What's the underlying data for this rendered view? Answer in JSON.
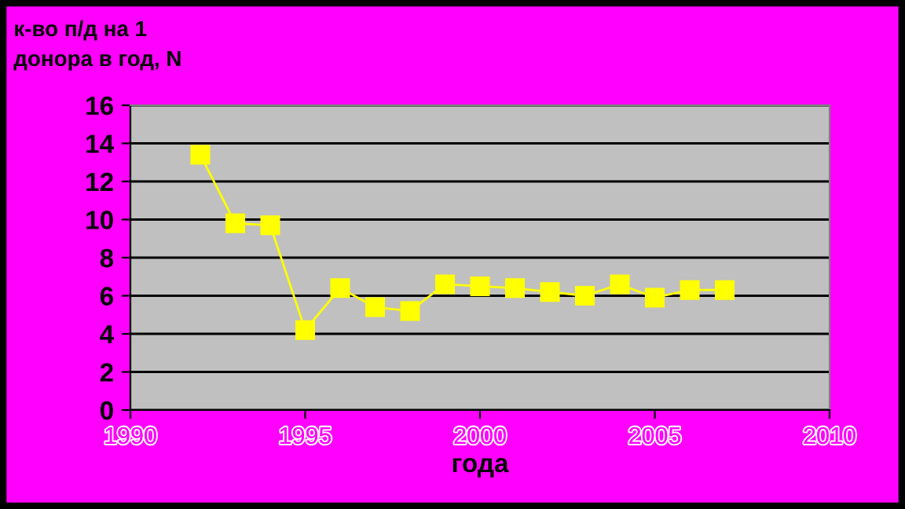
{
  "chart_data": {
    "type": "line",
    "ylabel": "к-во п/д на 1\nдонора в год, N",
    "xlabel": "года",
    "x": [
      1992,
      1993,
      1994,
      1995,
      1996,
      1997,
      1998,
      1999,
      2000,
      2001,
      2002,
      2003,
      2004,
      2005,
      2006,
      2007
    ],
    "series": [
      {
        "color": "#ffff00",
        "values": [
          13.4,
          9.8,
          9.7,
          4.2,
          6.4,
          5.4,
          5.2,
          6.6,
          6.5,
          6.4,
          6.2,
          6.0,
          6.6,
          5.9,
          6.3,
          6.3
        ]
      }
    ],
    "xlim": [
      1990,
      2010
    ],
    "xticks": [
      1990,
      1995,
      2000,
      2005,
      2010
    ],
    "ylim": [
      0,
      16
    ],
    "yticks": [
      0,
      2,
      4,
      6,
      8,
      10,
      12,
      14,
      16
    ],
    "grid": "y",
    "legend": false,
    "marker": "square",
    "line_style": "solid"
  }
}
